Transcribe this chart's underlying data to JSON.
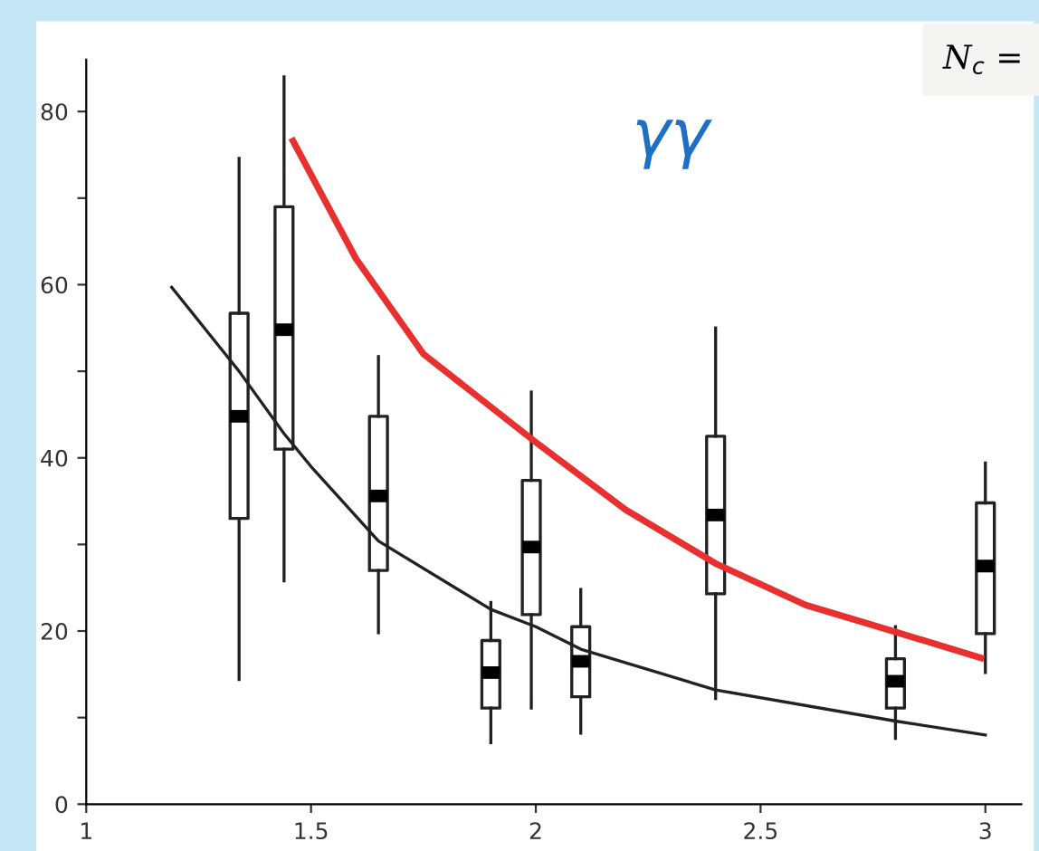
{
  "chart_data": {
    "type": "box",
    "x": [
      1.34,
      1.44,
      1.65,
      1.9,
      1.99,
      2.1,
      2.4,
      2.8,
      3.0
    ],
    "boxes": [
      {
        "low": 14.4,
        "q1": 33,
        "median": 44.8,
        "q3": 56.7,
        "high": 74.6
      },
      {
        "low": 25.8,
        "q1": 41,
        "median": 54.8,
        "q3": 69,
        "high": 84
      },
      {
        "low": 19.8,
        "q1": 27,
        "median": 35.6,
        "q3": 44.8,
        "high": 51.7
      },
      {
        "low": 7.1,
        "q1": 11.1,
        "median": 15.2,
        "q3": 18.9,
        "high": 23.3
      },
      {
        "low": 11.1,
        "q1": 21.9,
        "median": 29.7,
        "q3": 37.4,
        "high": 47.6
      },
      {
        "low": 8.2,
        "q1": 12.4,
        "median": 16.5,
        "q3": 20.5,
        "high": 24.8
      },
      {
        "low": 12.2,
        "q1": 24.3,
        "median": 33.4,
        "q3": 42.5,
        "high": 55
      },
      {
        "low": 7.6,
        "q1": 11.1,
        "median": 14.2,
        "q3": 16.8,
        "high": 20.5
      },
      {
        "low": 15.2,
        "q1": 19.7,
        "median": 27.5,
        "q3": 34.8,
        "high": 39.4
      }
    ],
    "series": [
      {
        "type": "line",
        "color": "#222222",
        "x": [
          1.19,
          1.34,
          1.44,
          1.5,
          1.65,
          1.9,
          2.0,
          2.1,
          2.4,
          2.8,
          3.0
        ],
        "values": [
          59.7,
          50,
          42.8,
          39,
          30.4,
          22.5,
          20.5,
          17.9,
          13.2,
          9.6,
          8
        ]
      },
      {
        "type": "line",
        "color": "#e8302f",
        "x": [
          1.46,
          1.6,
          1.75,
          2.0,
          2.2,
          2.4,
          2.6,
          2.8,
          2.99
        ],
        "values": [
          76.6,
          63,
          52,
          41.8,
          34,
          27.8,
          23,
          19.9,
          16.9
        ]
      }
    ],
    "xlim": [
      1,
      3.08
    ],
    "ylim": [
      0,
      86
    ],
    "xticks": [
      1,
      1.5,
      2,
      2.5,
      3
    ],
    "yticks": [
      0,
      {
        "value": 10,
        "label": null
      },
      20,
      {
        "value": 30,
        "label": null
      },
      40,
      {
        "value": 50,
        "label": null
      },
      60,
      {
        "value": 70,
        "label": null
      },
      80
    ],
    "annotations": [
      "γγ",
      "N$_{c}$ ="
    ],
    "grid": false,
    "legend": false
  }
}
